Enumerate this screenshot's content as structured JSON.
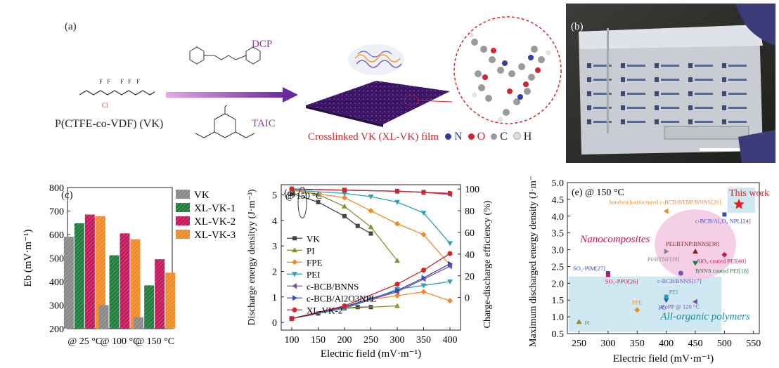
{
  "panel_a": {
    "label": "(a)",
    "monomer_name": "P(CTFE-co-VDF) (VK)",
    "reagent_top": "DCP",
    "reagent_bottom": "TAIC",
    "film_caption": "Crosslinked VK (XL-VK) film",
    "atom_legend": [
      {
        "symbol": "N",
        "color": "#2d3fa0"
      },
      {
        "symbol": "O",
        "color": "#d2262b"
      },
      {
        "symbol": "C",
        "color": "#9a9a9a"
      },
      {
        "symbol": "H",
        "color": "#dddddd"
      }
    ],
    "structure_atoms": [
      "F",
      "F",
      "F",
      "F",
      "F",
      "Cl"
    ]
  },
  "panel_b": {
    "label": "(b)"
  },
  "chart_data": [
    {
      "panel": "(c)",
      "type": "bar",
      "categories": [
        "@ 25 °C",
        "@ 100 °C",
        "@ 150 °C"
      ],
      "series": [
        {
          "name": "VK",
          "values": [
            591,
            300,
            248
          ],
          "color": "#888888",
          "pattern": "hatch"
        },
        {
          "name": "XL-VK-1",
          "values": [
            648,
            512,
            384
          ],
          "color": "#1e7d3a",
          "pattern": "hatch"
        },
        {
          "name": "XL-VK-2",
          "values": [
            685,
            605,
            495
          ],
          "color": "#c2185b",
          "pattern": "hatch"
        },
        {
          "name": "XL-VK-3",
          "values": [
            678,
            580,
            438
          ],
          "color": "#f08a24",
          "pattern": "hatch"
        }
      ],
      "ylabel": "Eb (mV·m⁻¹)",
      "ylim": [
        200,
        800
      ],
      "yticks": [
        200,
        300,
        400,
        500,
        600,
        700,
        800
      ],
      "legend": "top-right"
    },
    {
      "panel": "(d)",
      "type": "line",
      "annotation": "@ 150 °C",
      "xlabel": "Electric field (mV·m⁻¹)",
      "xlim": [
        80,
        420
      ],
      "xticks": [
        100,
        150,
        200,
        250,
        300,
        350,
        400
      ],
      "ylabel_left": "Discharge energy densityy (J·m⁻³)",
      "ylim_left": [
        -0.3,
        5.4
      ],
      "yticks_left": [
        0,
        1,
        2,
        3,
        4,
        5
      ],
      "ylabel_right": "Charge-discharge efficiency (%)",
      "ylim_right": [
        -30,
        104
      ],
      "yticks_right": [
        0,
        20,
        40,
        60,
        80,
        100
      ],
      "series": [
        {
          "name": "VK",
          "color": "#444444",
          "marker": "square",
          "energy": {
            "x": [
              100,
              150,
              200,
              225,
              250
            ],
            "y": [
              0.15,
              0.35,
              0.55,
              0.6,
              0.6
            ]
          },
          "efficiency": {
            "x": [
              100,
              150,
              200,
              225,
              250
            ],
            "y": [
              96,
              88,
              75,
              66,
              59
            ]
          }
        },
        {
          "name": "PI",
          "color": "#8a8f2b",
          "marker": "triangle-up",
          "energy": {
            "x": [
              100,
              200,
              300
            ],
            "y": [
              0.15,
              0.55,
              0.65
            ]
          },
          "efficiency": {
            "x": [
              100,
              150,
              200,
              250,
              300
            ],
            "y": [
              99,
              95,
              84,
              65,
              34
            ]
          }
        },
        {
          "name": "FPE",
          "color": "#f08a24",
          "marker": "diamond",
          "energy": {
            "x": [
              100,
              200,
              250,
              300,
              350,
              400
            ],
            "y": [
              0.15,
              0.55,
              0.9,
              1.05,
              1.2,
              0.85
            ]
          },
          "efficiency": {
            "x": [
              100,
              200,
              250,
              300,
              350,
              400
            ],
            "y": [
              99,
              92,
              80,
              68,
              58,
              30
            ]
          }
        },
        {
          "name": "PEI",
          "color": "#2aa3b5",
          "marker": "triangle-down",
          "energy": {
            "x": [
              100,
              200,
              250,
              300,
              350,
              400
            ],
            "y": [
              0.15,
              0.55,
              0.9,
              1.3,
              1.45,
              1.6
            ]
          },
          "efficiency": {
            "x": [
              100,
              200,
              250,
              300,
              350,
              400
            ],
            "y": [
              99,
              96,
              93,
              88,
              78,
              50
            ]
          }
        },
        {
          "name": "c-BCB/BNNS",
          "color": "#7b4fb0",
          "marker": "triangle-left",
          "energy": {
            "x": [
              100,
              200,
              300,
              350,
              400
            ],
            "y": [
              0.15,
              0.6,
              1.2,
              1.7,
              2.2
            ]
          },
          "efficiency": {
            "x": [
              100,
              200,
              300,
              350,
              400
            ],
            "y": [
              100,
              99,
              98,
              97,
              95
            ]
          }
        },
        {
          "name": "c-BCB/Al2O3NPL",
          "color": "#3a4fb5",
          "marker": "triangle-right",
          "energy": {
            "x": [
              100,
              200,
              300,
              350,
              400
            ],
            "y": [
              0.15,
              0.62,
              1.25,
              1.75,
              2.3
            ]
          },
          "efficiency": {
            "x": [
              100,
              200,
              300,
              350,
              400
            ],
            "y": [
              100,
              99,
              98,
              97,
              96
            ]
          }
        },
        {
          "name": "XL-VK-2",
          "color": "#d2262b",
          "marker": "circle",
          "energy": {
            "x": [
              100,
              200,
              300,
              350,
              400
            ],
            "y": [
              0.15,
              0.65,
              1.5,
              2.05,
              2.7
            ]
          },
          "efficiency": {
            "x": [
              100,
              200,
              300,
              350,
              400
            ],
            "y": [
              100,
              99,
              98,
              97,
              96
            ]
          }
        }
      ],
      "legend": "left"
    },
    {
      "panel": "(e)",
      "type": "scatter",
      "annotation": "@ 150 °C",
      "xlabel": "Electric field (mV·m⁻¹)",
      "ylabel": "Maximum discharged energy density (J·m⁻³)",
      "xlim": [
        230,
        560
      ],
      "ylim": [
        0.5,
        5.0
      ],
      "xticks": [
        250,
        300,
        350,
        400,
        450,
        500,
        550
      ],
      "yticks": [
        0.5,
        1.0,
        1.5,
        2.0,
        2.5,
        3.0,
        3.5,
        4.0,
        4.5,
        5.0
      ],
      "region_labels": {
        "nanocomposites": "Nanocomposites",
        "all_organic": "All-organic polymers",
        "this_work": "This work"
      },
      "points": [
        {
          "label": "PI",
          "x": 250,
          "y": 0.85,
          "color": "#8a8f2b",
          "marker": "triangle-up"
        },
        {
          "label": "SO₂-PIM[27]",
          "x": 300,
          "y": 2.3,
          "color": "#3a4fb5",
          "marker": "square"
        },
        {
          "label": "SO₂-PPO[26]",
          "x": 300,
          "y": 2.25,
          "color": "#c2185b",
          "marker": "square"
        },
        {
          "label": "FPE",
          "x": 350,
          "y": 1.2,
          "color": "#f08a24",
          "marker": "diamond"
        },
        {
          "label": "PC",
          "x": 400,
          "y": 1.5,
          "color": "#3a4fb5",
          "marker": "triangle-down"
        },
        {
          "label": "PEI",
          "x": 400,
          "y": 1.6,
          "color": "#2aa3b5",
          "marker": "square"
        },
        {
          "label": "BoPP @ 120 °C",
          "x": 450,
          "y": 1.45,
          "color": "#7b4fb0",
          "marker": "triangle-left"
        },
        {
          "label": "Sandwich-structured c-BCB/BTNP/BNNS[28]",
          "x": 400,
          "y": 4.15,
          "color": "#f08a24",
          "marker": "triangle-left"
        },
        {
          "label": "PI/BTNF[39]",
          "x": 400,
          "y": 2.95,
          "color": "#888888",
          "marker": "triangle-right"
        },
        {
          "label": "c-BCB/BNNS[17]",
          "x": 425,
          "y": 2.3,
          "color": "#7b4fb0",
          "marker": "circle"
        },
        {
          "label": "PEI/BTNP/BNNS[38]",
          "x": 450,
          "y": 2.95,
          "color": "#8b1a1a",
          "marker": "triangle-up"
        },
        {
          "label": "BNNS coated PEI[18]",
          "x": 450,
          "y": 2.6,
          "color": "#1e7d3a",
          "marker": "triangle-down"
        },
        {
          "label": "SiO₂ coated PEI[40]",
          "x": 500,
          "y": 2.85,
          "color": "#c2185b",
          "marker": "diamond"
        },
        {
          "label": "c-BCB/Al₂O₃ NPL[24]",
          "x": 500,
          "y": 4.05,
          "color": "#3a4fb5",
          "marker": "square"
        },
        {
          "label": "This work",
          "x": 525,
          "y": 4.35,
          "color": "#e02020",
          "marker": "star"
        }
      ]
    }
  ]
}
